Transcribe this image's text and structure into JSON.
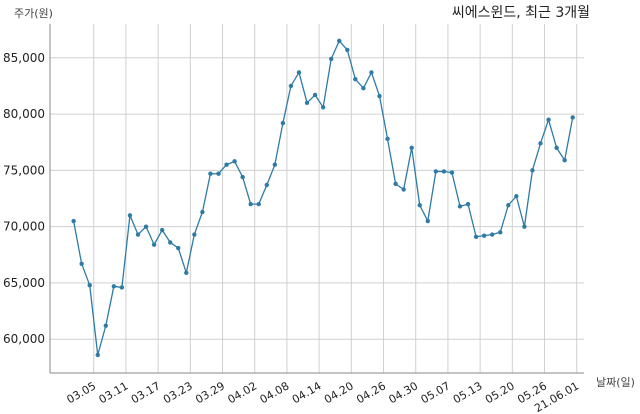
{
  "chart_data": {
    "type": "line",
    "title": "씨에스윈드, 최근 3개월",
    "ylabel": "주가(원)",
    "xlabel": "날짜(일)",
    "ylim": [
      57000,
      88000
    ],
    "grid": true,
    "legend": "none",
    "y_ticks": [
      {
        "value": 60000,
        "label": "60,000"
      },
      {
        "value": 65000,
        "label": "65,000"
      },
      {
        "value": 70000,
        "label": "70,000"
      },
      {
        "value": 75000,
        "label": "75,000"
      },
      {
        "value": 80000,
        "label": "80,000"
      },
      {
        "value": 85000,
        "label": "85,000"
      }
    ],
    "x_ticks": [
      {
        "index": 2.5,
        "label": "03.05"
      },
      {
        "index": 6.5,
        "label": "03.11"
      },
      {
        "index": 10.5,
        "label": "03.17"
      },
      {
        "index": 14.5,
        "label": "03.23"
      },
      {
        "index": 18.5,
        "label": "03.29"
      },
      {
        "index": 22.5,
        "label": "04.02"
      },
      {
        "index": 26.5,
        "label": "04.08"
      },
      {
        "index": 30.5,
        "label": "04.14"
      },
      {
        "index": 34.5,
        "label": "04.20"
      },
      {
        "index": 38.5,
        "label": "04.26"
      },
      {
        "index": 42.5,
        "label": "04.30"
      },
      {
        "index": 46.5,
        "label": "05.07"
      },
      {
        "index": 50.5,
        "label": "05.13"
      },
      {
        "index": 54.5,
        "label": "05.20"
      },
      {
        "index": 58.5,
        "label": "05.26"
      },
      {
        "index": 62.5,
        "label": "21.06.01"
      }
    ],
    "series": [
      {
        "color": "#2e7ba6",
        "values": [
          70500,
          66700,
          64800,
          58600,
          61200,
          64700,
          64600,
          71000,
          69300,
          70000,
          68400,
          69700,
          68600,
          68100,
          65900,
          69300,
          71300,
          74700,
          74700,
          75500,
          75800,
          74400,
          72000,
          72000,
          73700,
          75500,
          79200,
          82500,
          83700,
          81000,
          81700,
          80600,
          84900,
          86500,
          85700,
          83100,
          82300,
          83700,
          81600,
          77800,
          73800,
          73300,
          77000,
          71900,
          70500,
          74900,
          74900,
          74800,
          71800,
          72000,
          69100,
          69200,
          69300,
          69500,
          71900,
          72700,
          70000,
          75000,
          77400,
          79500,
          77000,
          75900,
          79700
        ]
      }
    ]
  }
}
